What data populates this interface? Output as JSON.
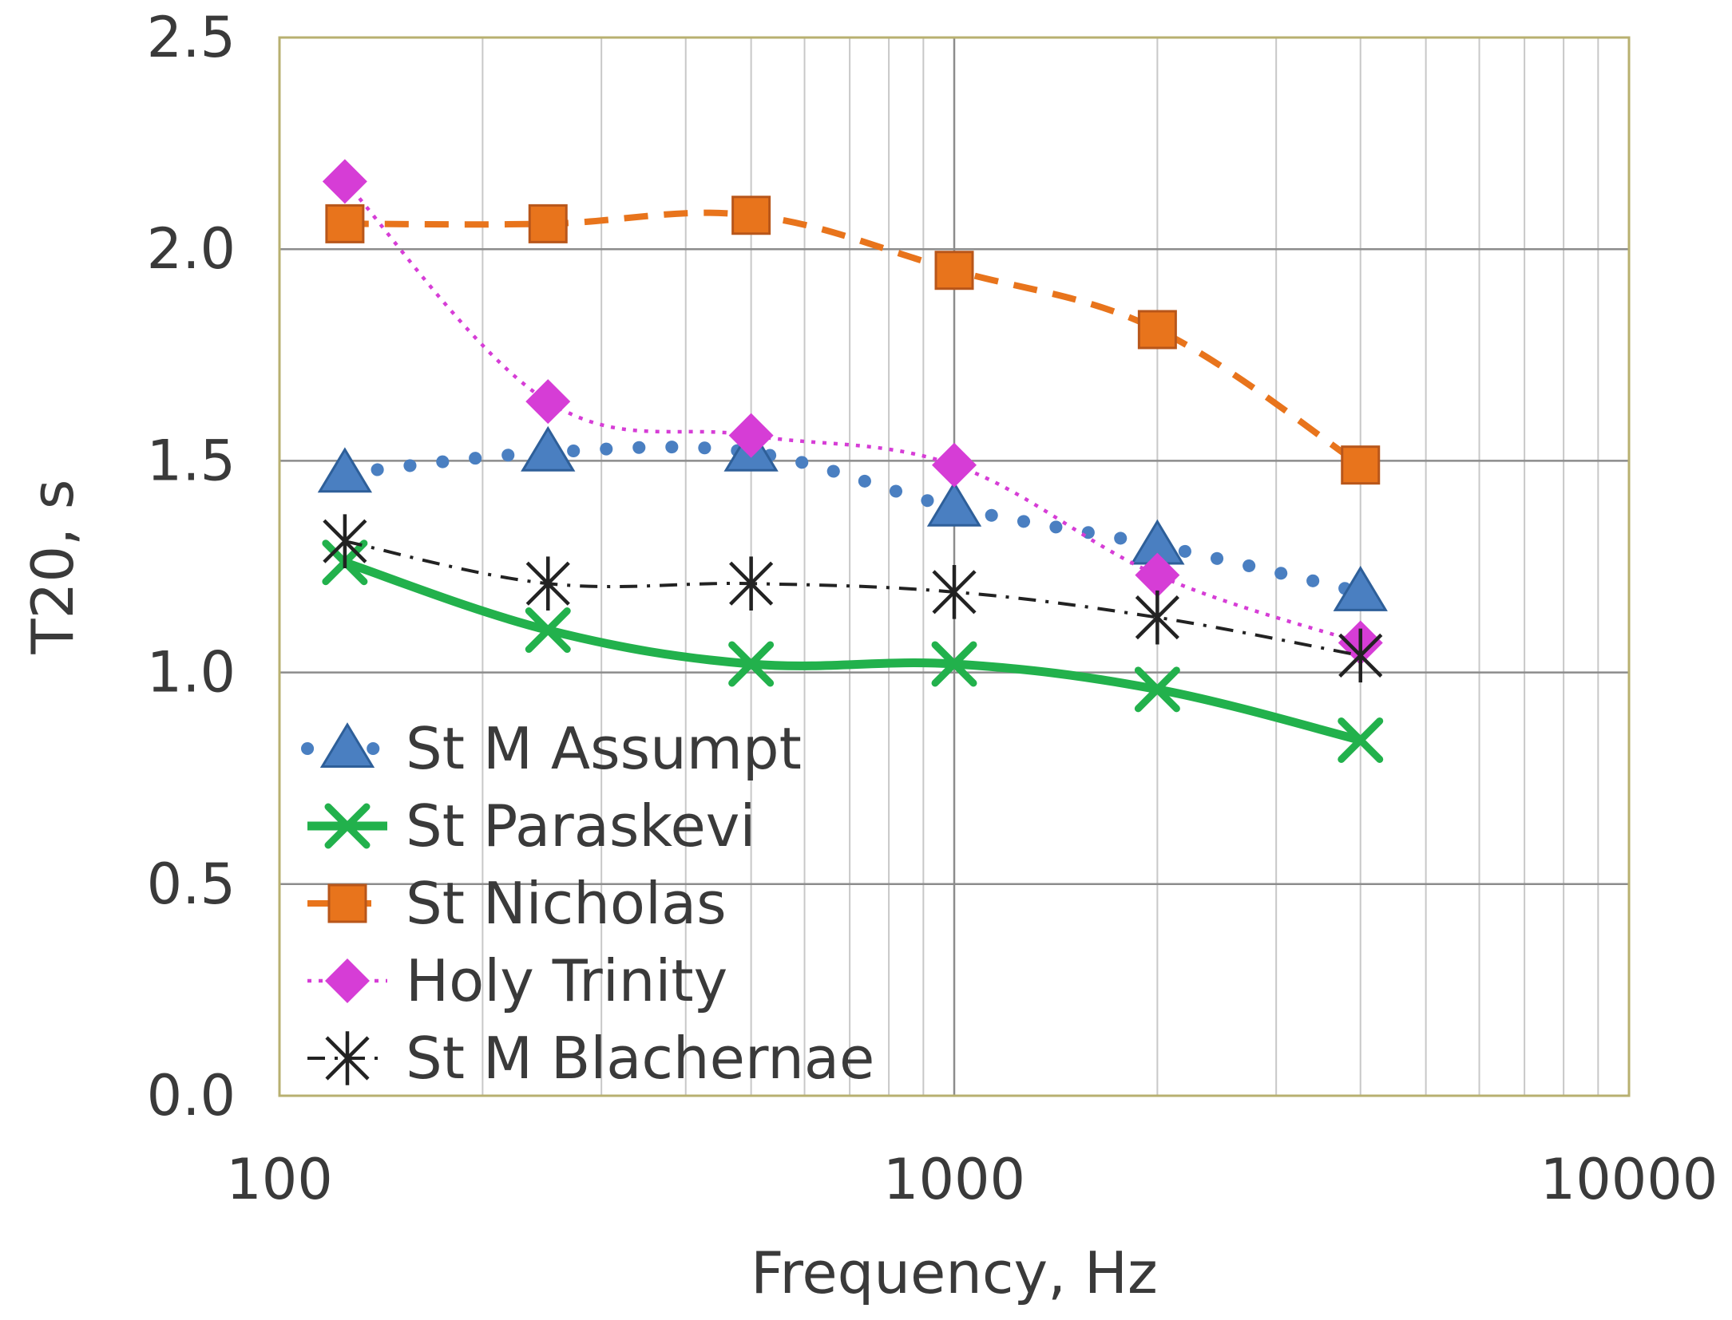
{
  "chart_data": {
    "type": "line",
    "title": "",
    "xlabel": "Frequency, Hz",
    "ylabel": "T20, s",
    "xscale": "log",
    "xlim": [
      100,
      10000
    ],
    "ylim": [
      0,
      2.5
    ],
    "x_ticks": [
      100,
      1000,
      10000
    ],
    "x_tick_labels": [
      "100",
      "1000",
      "10000"
    ],
    "y_ticks": [
      0,
      0.5,
      1.0,
      1.5,
      2.0,
      2.5
    ],
    "y_tick_labels": [
      "0.0",
      "0.5",
      "1.0",
      "1.5",
      "2.0",
      "2.5"
    ],
    "grid": true,
    "legend_position": "bottom-left",
    "x": [
      125,
      250,
      500,
      1000,
      2000,
      4000
    ],
    "series": [
      {
        "name": "St M Assumpt",
        "values": [
          1.47,
          1.52,
          1.52,
          1.39,
          1.3,
          1.19
        ],
        "color": "#4a7fc1",
        "line_style": "dotted",
        "marker": "triangle"
      },
      {
        "name": "St Paraskevi",
        "values": [
          1.26,
          1.1,
          1.02,
          1.02,
          0.96,
          0.84
        ],
        "color": "#22b14c",
        "line_style": "solid",
        "marker": "x"
      },
      {
        "name": "St Nicholas",
        "values": [
          2.06,
          2.06,
          2.08,
          1.95,
          1.81,
          1.49
        ],
        "color": "#e8741c",
        "line_style": "dashed",
        "marker": "square"
      },
      {
        "name": "Holy Trinity",
        "values": [
          2.16,
          1.64,
          1.56,
          1.49,
          1.23,
          1.07
        ],
        "color": "#d63dd6",
        "line_style": "dotted",
        "marker": "diamond"
      },
      {
        "name": "St M Blachernae",
        "values": [
          1.31,
          1.21,
          1.21,
          1.19,
          1.13,
          1.04
        ],
        "color": "#222222",
        "line_style": "dashdot",
        "marker": "asterisk"
      }
    ]
  },
  "colors": {
    "plot_border": "#b8b070",
    "grid_major": "#8c8c8c",
    "grid_minor": "#c8c8c8"
  }
}
